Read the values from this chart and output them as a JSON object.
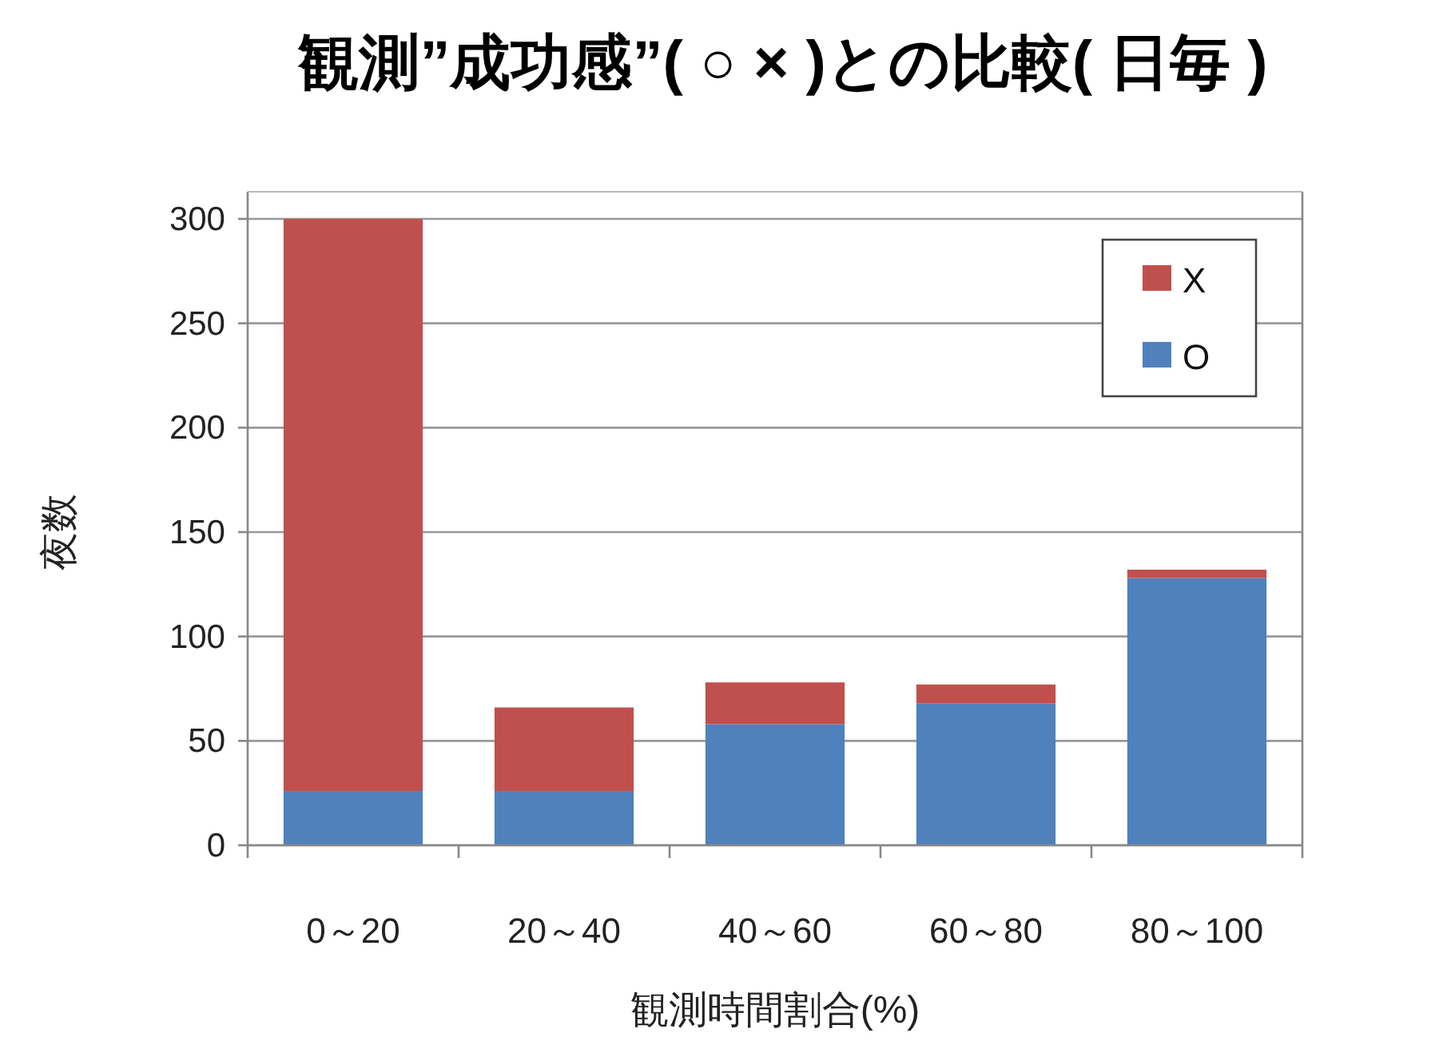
{
  "chart_data": {
    "type": "bar",
    "title": "観測”成功感”( ○ × )との比較( 日毎 )",
    "xlabel": "観測時間割合(%)",
    "ylabel": "夜数",
    "categories": [
      "0～20",
      "20～40",
      "40～60",
      "60～80",
      "80～100"
    ],
    "stacked": true,
    "series": [
      {
        "name": "O",
        "color": "#4f81bd",
        "values": [
          26,
          26,
          58,
          68,
          128
        ]
      },
      {
        "name": "X",
        "color": "#c0504d",
        "values": [
          274,
          40,
          20,
          9,
          4
        ]
      }
    ],
    "ylim": [
      0,
      300
    ],
    "yticks": [
      0,
      50,
      100,
      150,
      200,
      250,
      300
    ],
    "grid": "y",
    "legend": "top right"
  }
}
